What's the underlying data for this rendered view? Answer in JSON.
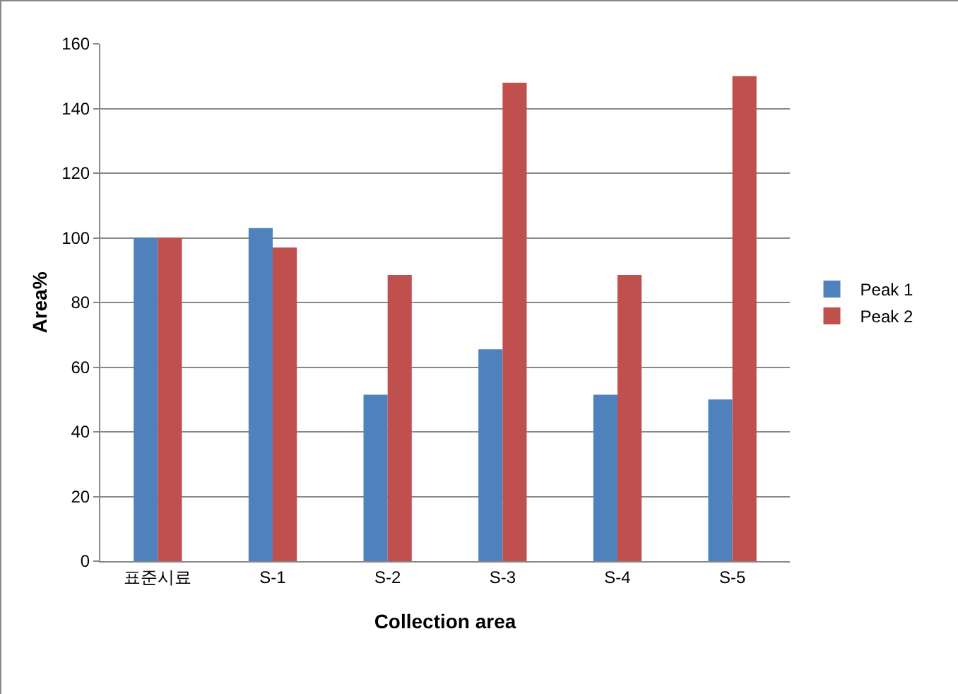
{
  "chart_data": {
    "type": "bar",
    "xlabel": "Collection area",
    "ylabel": "Area%",
    "categories": [
      "표준시료",
      "S-1",
      "S-2",
      "S-3",
      "S-4",
      "S-5"
    ],
    "series": [
      {
        "name": "Peak 1",
        "color": "#4f81bd",
        "values": [
          100,
          103,
          51.5,
          65.5,
          51.5,
          50
        ]
      },
      {
        "name": "Peak 2",
        "color": "#c0504d",
        "values": [
          100,
          97,
          88.5,
          148,
          88.5,
          150
        ]
      }
    ],
    "ylim": [
      0,
      160
    ],
    "yticks": [
      0,
      20,
      40,
      60,
      80,
      100,
      120,
      140,
      160
    ],
    "grid": "y",
    "legend": "right"
  }
}
